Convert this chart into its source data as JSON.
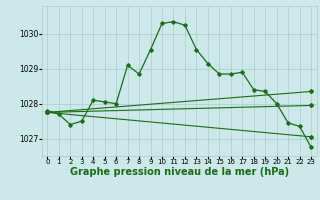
{
  "background_color": "#cce8e8",
  "line_color": "#1a6b1a",
  "grid_color": "#aacccc",
  "xlabel": "Graphe pression niveau de la mer (hPa)",
  "xlabel_fontsize": 7,
  "xlim": [
    -0.5,
    23.5
  ],
  "ylim": [
    1026.5,
    1030.8
  ],
  "yticks": [
    1027,
    1028,
    1029,
    1030
  ],
  "xticks": [
    0,
    1,
    2,
    3,
    4,
    5,
    6,
    7,
    8,
    9,
    10,
    11,
    12,
    13,
    14,
    15,
    16,
    17,
    18,
    19,
    20,
    21,
    22,
    23
  ],
  "series_main": {
    "x": [
      0,
      1,
      2,
      3,
      4,
      5,
      6,
      7,
      8,
      9,
      10,
      11,
      12,
      13,
      14,
      15,
      16,
      17,
      18,
      19,
      20,
      21,
      22,
      23
    ],
    "y": [
      1027.8,
      1027.7,
      1027.4,
      1027.5,
      1028.1,
      1028.05,
      1028.0,
      1029.1,
      1028.85,
      1029.55,
      1030.3,
      1030.35,
      1030.25,
      1029.55,
      1029.15,
      1028.85,
      1028.85,
      1028.9,
      1028.4,
      1028.35,
      1028.0,
      1027.45,
      1027.35,
      1026.75
    ]
  },
  "series_line2": {
    "x": [
      0,
      23
    ],
    "y": [
      1027.75,
      1028.35
    ]
  },
  "series_line3": {
    "x": [
      0,
      23
    ],
    "y": [
      1027.75,
      1027.95
    ]
  },
  "series_line4": {
    "x": [
      0,
      23
    ],
    "y": [
      1027.75,
      1027.05
    ]
  }
}
